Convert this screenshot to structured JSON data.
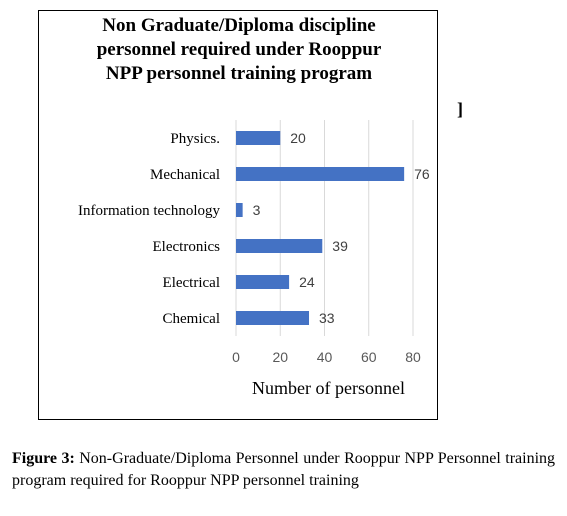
{
  "chart_data": {
    "type": "bar",
    "orientation": "horizontal",
    "title": "Non Graduate/Diploma discipline\npersonnel required under Rooppur\nNPP  personnel training program",
    "categories": [
      "Physics.",
      "Mechanical",
      "Information technology",
      "Electronics",
      "Electrical",
      "Chemical"
    ],
    "values": [
      20,
      76,
      3,
      39,
      24,
      33
    ],
    "xlabel": "Number of personnel",
    "ylabel": "",
    "xlim": [
      0,
      80
    ],
    "xticks": [
      "0",
      "20",
      "40",
      "60",
      "80"
    ],
    "grid": true,
    "legend": false,
    "bar_color": "#4472c4",
    "grid_color": "#d9d9d9"
  },
  "stray_mark": "]",
  "caption": {
    "label": "Figure 3:",
    "text": " Non-Graduate/Diploma Personnel under Rooppur NPP Personnel training program required for Rooppur NPP personnel training"
  }
}
